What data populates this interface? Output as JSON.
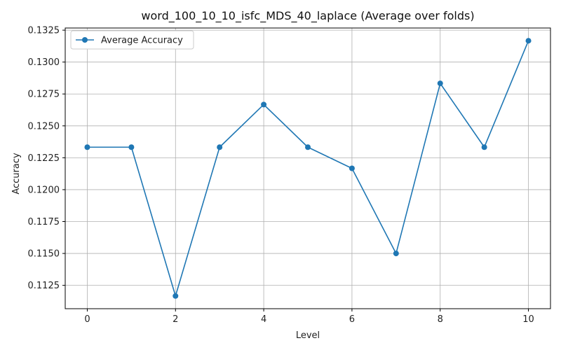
{
  "chart_data": {
    "type": "line",
    "title": "word_100_10_10_isfc_MDS_40_laplace (Average over folds)",
    "xlabel": "Level",
    "ylabel": "Accuracy",
    "x": [
      0,
      1,
      2,
      3,
      4,
      5,
      6,
      7,
      8,
      9,
      10
    ],
    "series": [
      {
        "name": "Average Accuracy",
        "color": "#1f77b4",
        "marker": "circle",
        "values": [
          0.12333,
          0.12333,
          0.11167,
          0.12333,
          0.12667,
          0.12333,
          0.12167,
          0.115,
          0.12833,
          0.12333,
          0.13167
        ]
      }
    ],
    "xlim": [
      -0.5,
      10.5
    ],
    "ylim": [
      0.11067,
      0.13267
    ],
    "xticks": [
      0,
      2,
      4,
      6,
      8,
      10
    ],
    "xtick_labels": [
      "0",
      "2",
      "4",
      "6",
      "8",
      "10"
    ],
    "yticks": [
      0.1125,
      0.115,
      0.1175,
      0.12,
      0.1225,
      0.125,
      0.1275,
      0.13,
      0.1325
    ],
    "ytick_labels": [
      "0.1125",
      "0.1150",
      "0.1175",
      "0.1200",
      "0.1225",
      "0.1250",
      "0.1275",
      "0.1300",
      "0.1325"
    ],
    "grid": true,
    "legend_position": "upper-left",
    "grid_color": "#b0b0b0",
    "axis_color": "#000000"
  }
}
